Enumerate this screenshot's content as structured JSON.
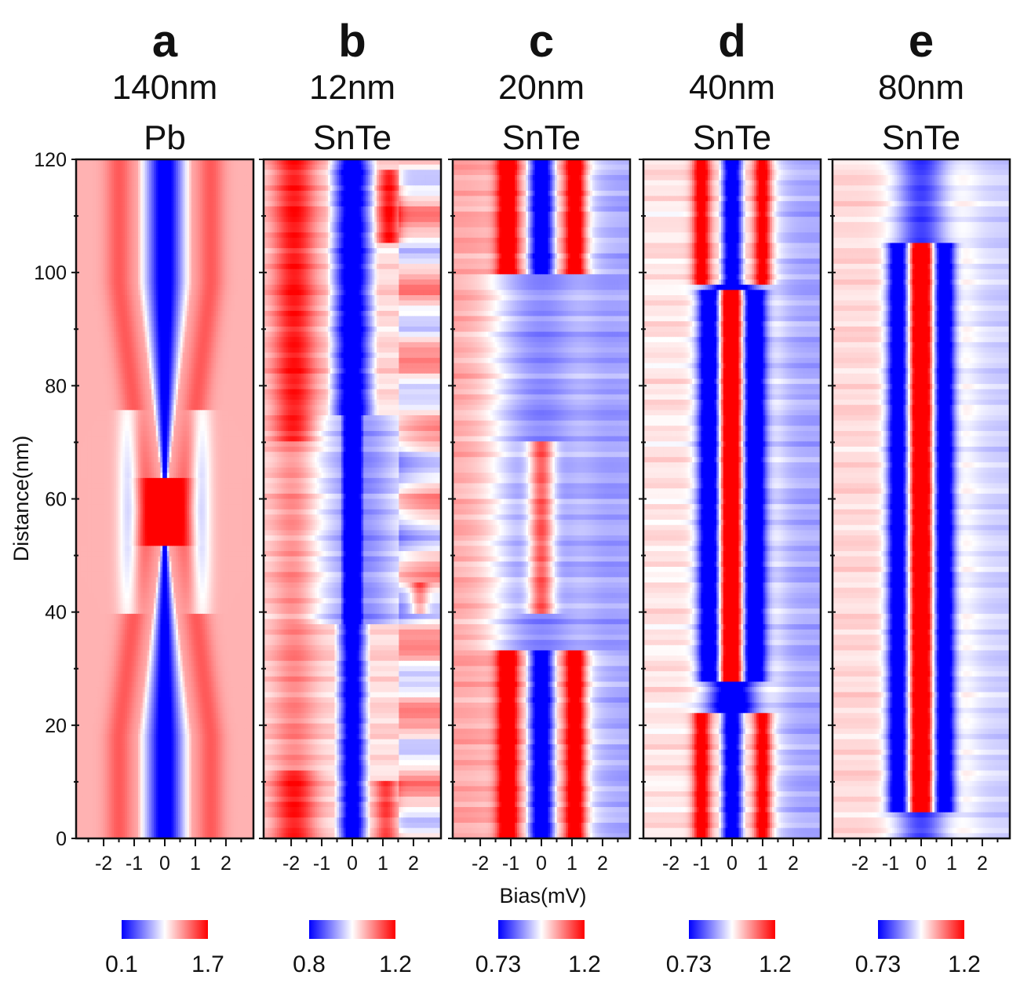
{
  "chart_data": {
    "type": "heatmap",
    "xlabel": "Bias(mV)",
    "ylabel": "Distance(nm)",
    "x_range": [
      -2.9,
      2.9
    ],
    "x_ticks": [
      -2,
      -1,
      0,
      1,
      2
    ],
    "x_tick_labels": [
      "-2",
      "-1",
      "0",
      "1",
      "2"
    ],
    "y_range": [
      0,
      120
    ],
    "y_ticks": [
      0,
      20,
      40,
      60,
      80,
      100,
      120
    ],
    "y_tick_labels": [
      "0",
      "20",
      "40",
      "60",
      "80",
      "100",
      "120"
    ],
    "colormap": {
      "low": "#0000ff",
      "mid": "#ffffff",
      "high": "#ff0000"
    },
    "panels": [
      {
        "letter": "a",
        "thickness": "140nm",
        "material": "Pb",
        "pattern": "pb",
        "colorbar": {
          "min_label": "0.1",
          "max_label": "1.7"
        }
      },
      {
        "letter": "b",
        "thickness": "12nm",
        "material": "SnTe",
        "pattern": "b",
        "colorbar": {
          "min_label": "0.8",
          "max_label": "1.2"
        }
      },
      {
        "letter": "c",
        "thickness": "20nm",
        "material": "SnTe",
        "pattern": "c",
        "colorbar": {
          "min_label": "0.73",
          "max_label": "1.2"
        }
      },
      {
        "letter": "d",
        "thickness": "40nm",
        "material": "SnTe",
        "pattern": "d",
        "colorbar": {
          "min_label": "0.73",
          "max_label": "1.2"
        }
      },
      {
        "letter": "e",
        "thickness": "80nm",
        "material": "SnTe",
        "pattern": "e",
        "colorbar": {
          "min_label": "0.73",
          "max_label": "1.2"
        }
      }
    ]
  }
}
